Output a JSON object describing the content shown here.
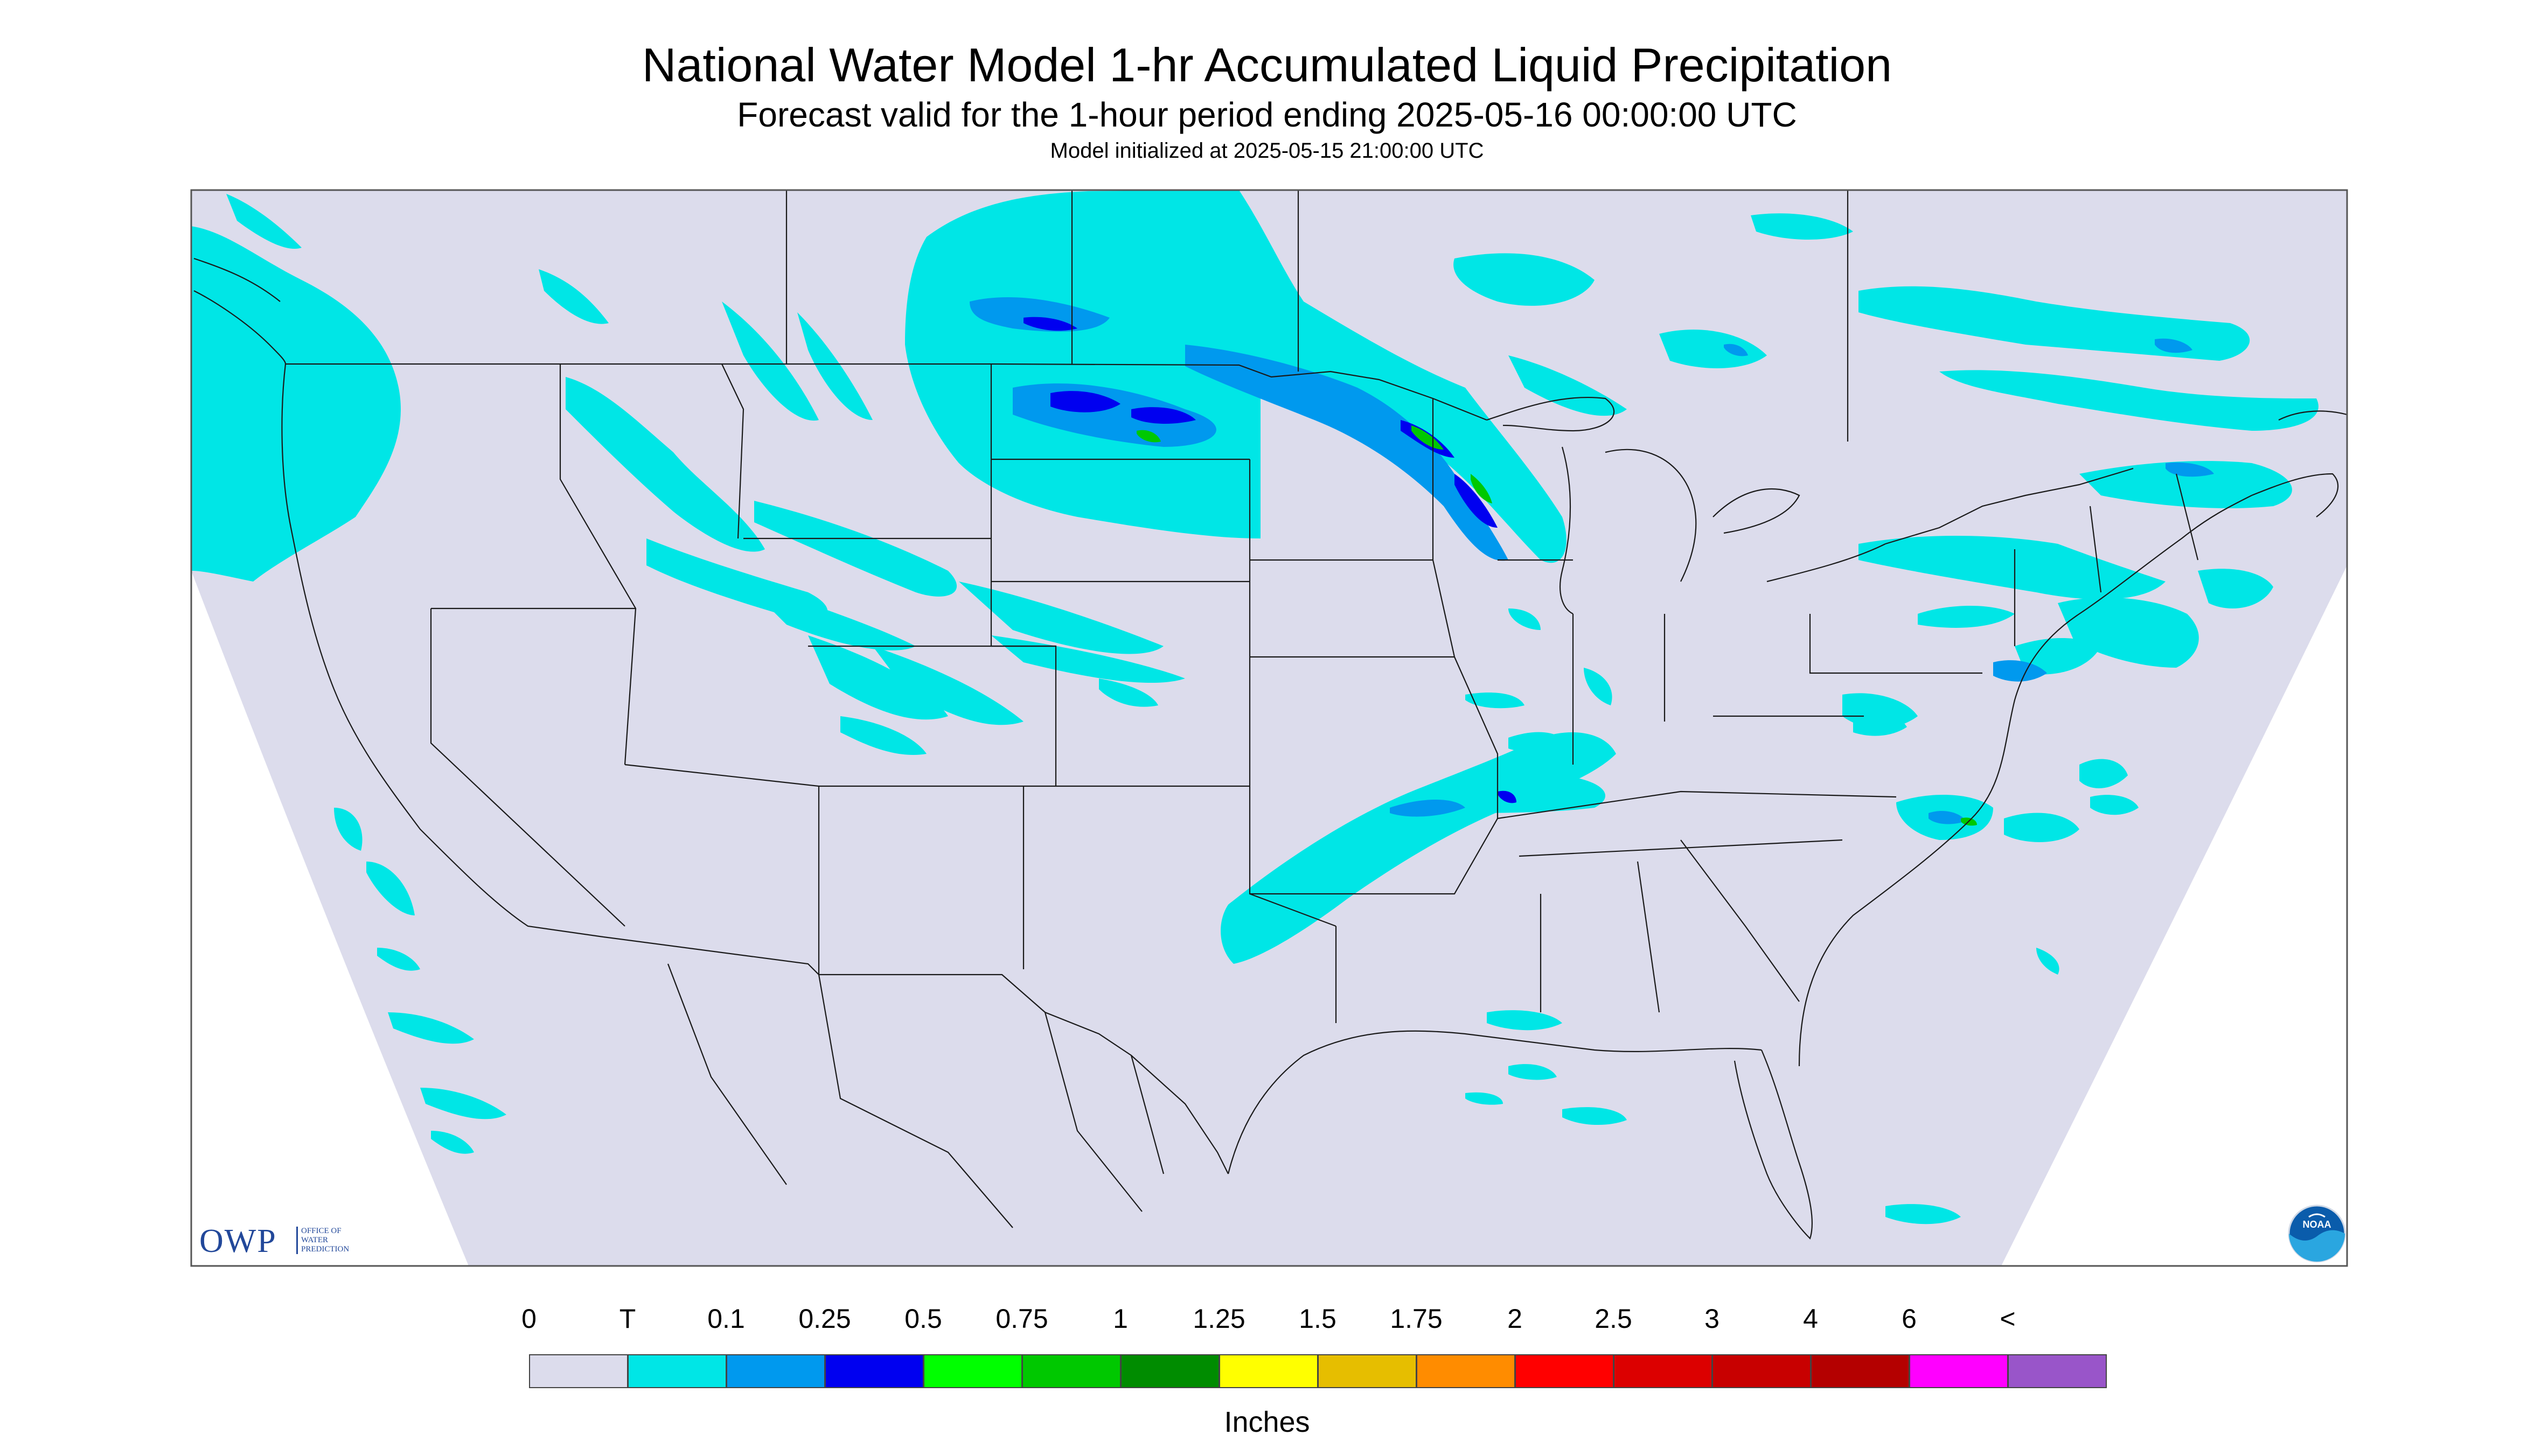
{
  "title": "National Water Model 1-hr Accumulated Liquid Precipitation",
  "subtitle": "Forecast valid for the 1-hour period ending 2025-05-16 00:00:00 UTC",
  "init_text": "Model initialized at 2025-05-15 21:00:00 UTC",
  "units": "Inches",
  "logos": {
    "owp_name": "OWP",
    "owp_full": "OFFICE OF WATER PREDICTION",
    "noaa_text": "NOAA"
  },
  "legend": {
    "labels": [
      "0",
      "T",
      "0.1",
      "0.25",
      "0.5",
      "0.75",
      "1",
      "1.25",
      "1.5",
      "1.75",
      "2",
      "2.5",
      "3",
      "4",
      "6",
      "<"
    ],
    "colors": [
      "#dcdcec",
      "#00e6e6",
      "#0099ee",
      "#0000f0",
      "#00ff00",
      "#00c800",
      "#008c00",
      "#ffff00",
      "#e6be00",
      "#ff8c00",
      "#ff0000",
      "#dc0000",
      "#c80000",
      "#b40000",
      "#ff00ff",
      "#9955c9"
    ]
  },
  "colors": {
    "no_data": "#ffffff",
    "background_precip": "#dcdcec",
    "trace": "#00e6e6",
    "light": "#0099ee",
    "moderate": "#0000f0",
    "heavy": "#00c800",
    "boundaries": "#222222"
  }
}
